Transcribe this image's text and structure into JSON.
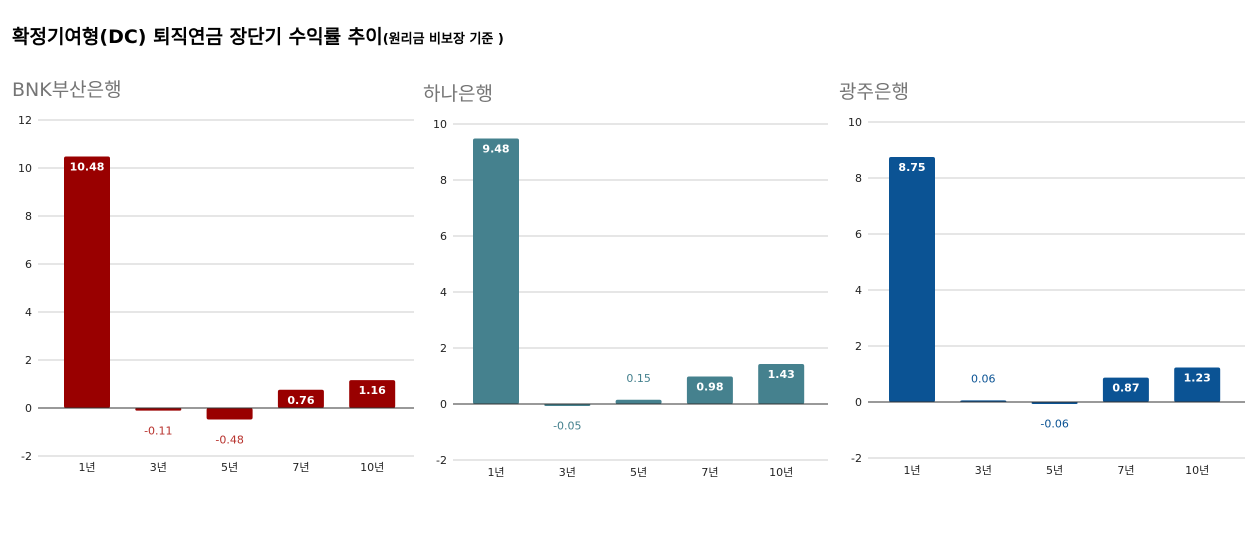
{
  "title": "확정기여형(DC) 퇴직연금 장단기 수익률 추이",
  "subtitle": "(원리금 비보장 기준 )",
  "chart_data": [
    {
      "type": "bar",
      "title": "BNK부산은행",
      "categories": [
        "1년",
        "3년",
        "5년",
        "7년",
        "10년"
      ],
      "values": [
        10.48,
        -0.11,
        -0.48,
        0.76,
        1.16
      ],
      "ylim": [
        -2,
        12
      ],
      "yticks": [
        -2,
        0,
        2,
        4,
        6,
        8,
        10,
        12
      ],
      "color": "#990000",
      "outside_label_color": "#b7312c",
      "grid": true,
      "legend": "none"
    },
    {
      "type": "bar",
      "title": "하나은행",
      "categories": [
        "1년",
        "3년",
        "5년",
        "7년",
        "10년"
      ],
      "values": [
        9.48,
        -0.05,
        0.15,
        0.98,
        1.43
      ],
      "ylim": [
        -2,
        10
      ],
      "yticks": [
        -2,
        0,
        2,
        4,
        6,
        8,
        10
      ],
      "color": "#45818e",
      "outside_label_color": "#45818e",
      "grid": true,
      "legend": "none"
    },
    {
      "type": "bar",
      "title": "광주은행",
      "categories": [
        "1년",
        "3년",
        "5년",
        "7년",
        "10년"
      ],
      "values": [
        8.75,
        0.06,
        -0.06,
        0.87,
        1.23
      ],
      "ylim": [
        -2,
        10
      ],
      "yticks": [
        -2,
        0,
        2,
        4,
        6,
        8,
        10
      ],
      "color": "#0b5394",
      "outside_label_color": "#0b5394",
      "grid": true,
      "legend": "none"
    }
  ]
}
